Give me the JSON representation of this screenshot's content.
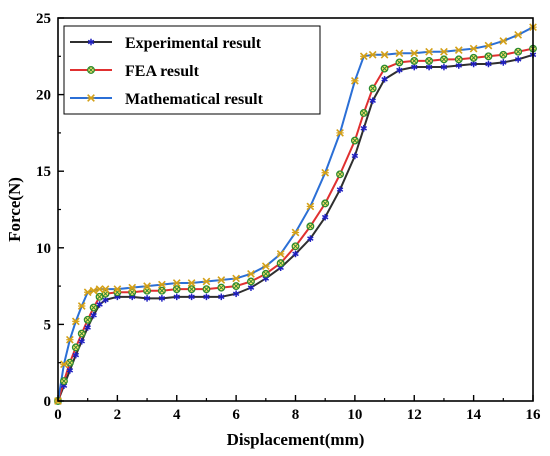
{
  "chart_data": {
    "type": "line",
    "xlabel": "Displacement(mm)",
    "ylabel": "Force(N)",
    "xlim": [
      0,
      16
    ],
    "ylim": [
      0,
      25
    ],
    "xticks": [
      0,
      2,
      4,
      6,
      8,
      10,
      12,
      14,
      16
    ],
    "yticks": [
      0,
      5,
      10,
      15,
      20,
      25
    ],
    "grid": false,
    "legend_position": "top-left",
    "series": [
      {
        "name": "Experimental result",
        "color": "#1f1fbf",
        "line_color": "#2f2f2f",
        "marker": "asterisk",
        "x": [
          0,
          0.2,
          0.4,
          0.6,
          0.8,
          1.0,
          1.2,
          1.4,
          1.6,
          2.0,
          2.5,
          3.0,
          3.5,
          4.0,
          4.5,
          5.0,
          5.5,
          6.0,
          6.5,
          7.0,
          7.5,
          8.0,
          8.5,
          9.0,
          9.5,
          10.0,
          10.3,
          10.6,
          11.0,
          11.5,
          12.0,
          12.5,
          13.0,
          13.5,
          14.0,
          14.5,
          15.0,
          15.5,
          16.0
        ],
        "y": [
          0,
          1.0,
          2.0,
          3.0,
          3.9,
          4.8,
          5.6,
          6.3,
          6.6,
          6.8,
          6.8,
          6.7,
          6.7,
          6.8,
          6.8,
          6.8,
          6.8,
          7.0,
          7.4,
          8.0,
          8.7,
          9.6,
          10.6,
          12.0,
          13.8,
          16.0,
          17.8,
          19.6,
          21.0,
          21.6,
          21.8,
          21.8,
          21.8,
          21.9,
          22.0,
          22.0,
          22.1,
          22.3,
          22.6
        ]
      },
      {
        "name": "FEA result",
        "color": "#2e8b2e",
        "line_color": "#e03030",
        "marker": "circle",
        "x": [
          0,
          0.2,
          0.4,
          0.6,
          0.8,
          1.0,
          1.2,
          1.4,
          1.6,
          2.0,
          2.5,
          3.0,
          3.5,
          4.0,
          4.5,
          5.0,
          5.5,
          6.0,
          6.5,
          7.0,
          7.5,
          8.0,
          8.5,
          9.0,
          9.5,
          10.0,
          10.3,
          10.6,
          11.0,
          11.5,
          12.0,
          12.5,
          13.0,
          13.5,
          14.0,
          14.5,
          15.0,
          15.5,
          16.0
        ],
        "y": [
          0,
          1.3,
          2.5,
          3.5,
          4.4,
          5.3,
          6.1,
          6.8,
          7.0,
          7.1,
          7.1,
          7.2,
          7.2,
          7.3,
          7.3,
          7.3,
          7.4,
          7.5,
          7.8,
          8.3,
          9.0,
          10.1,
          11.4,
          12.9,
          14.8,
          17.0,
          18.8,
          20.4,
          21.7,
          22.1,
          22.2,
          22.2,
          22.3,
          22.3,
          22.4,
          22.5,
          22.6,
          22.8,
          23.0
        ]
      },
      {
        "name": "Mathematical result",
        "color": "#d4a017",
        "line_color": "#2b6fd6",
        "marker": "star",
        "x": [
          0,
          0.2,
          0.4,
          0.6,
          0.8,
          1.0,
          1.2,
          1.4,
          1.6,
          2.0,
          2.5,
          3.0,
          3.5,
          4.0,
          4.5,
          5.0,
          5.5,
          6.0,
          6.5,
          7.0,
          7.5,
          8.0,
          8.5,
          9.0,
          9.5,
          10.0,
          10.3,
          10.6,
          11.0,
          11.5,
          12.0,
          12.5,
          13.0,
          13.5,
          14.0,
          14.5,
          15.0,
          15.5,
          16.0
        ],
        "y": [
          0,
          2.4,
          4.0,
          5.2,
          6.2,
          7.1,
          7.2,
          7.3,
          7.3,
          7.3,
          7.4,
          7.5,
          7.6,
          7.7,
          7.7,
          7.8,
          7.9,
          8.0,
          8.3,
          8.8,
          9.6,
          11.0,
          12.7,
          14.9,
          17.5,
          20.9,
          22.5,
          22.6,
          22.6,
          22.7,
          22.7,
          22.8,
          22.8,
          22.9,
          23.0,
          23.2,
          23.5,
          23.9,
          24.4
        ]
      }
    ]
  }
}
